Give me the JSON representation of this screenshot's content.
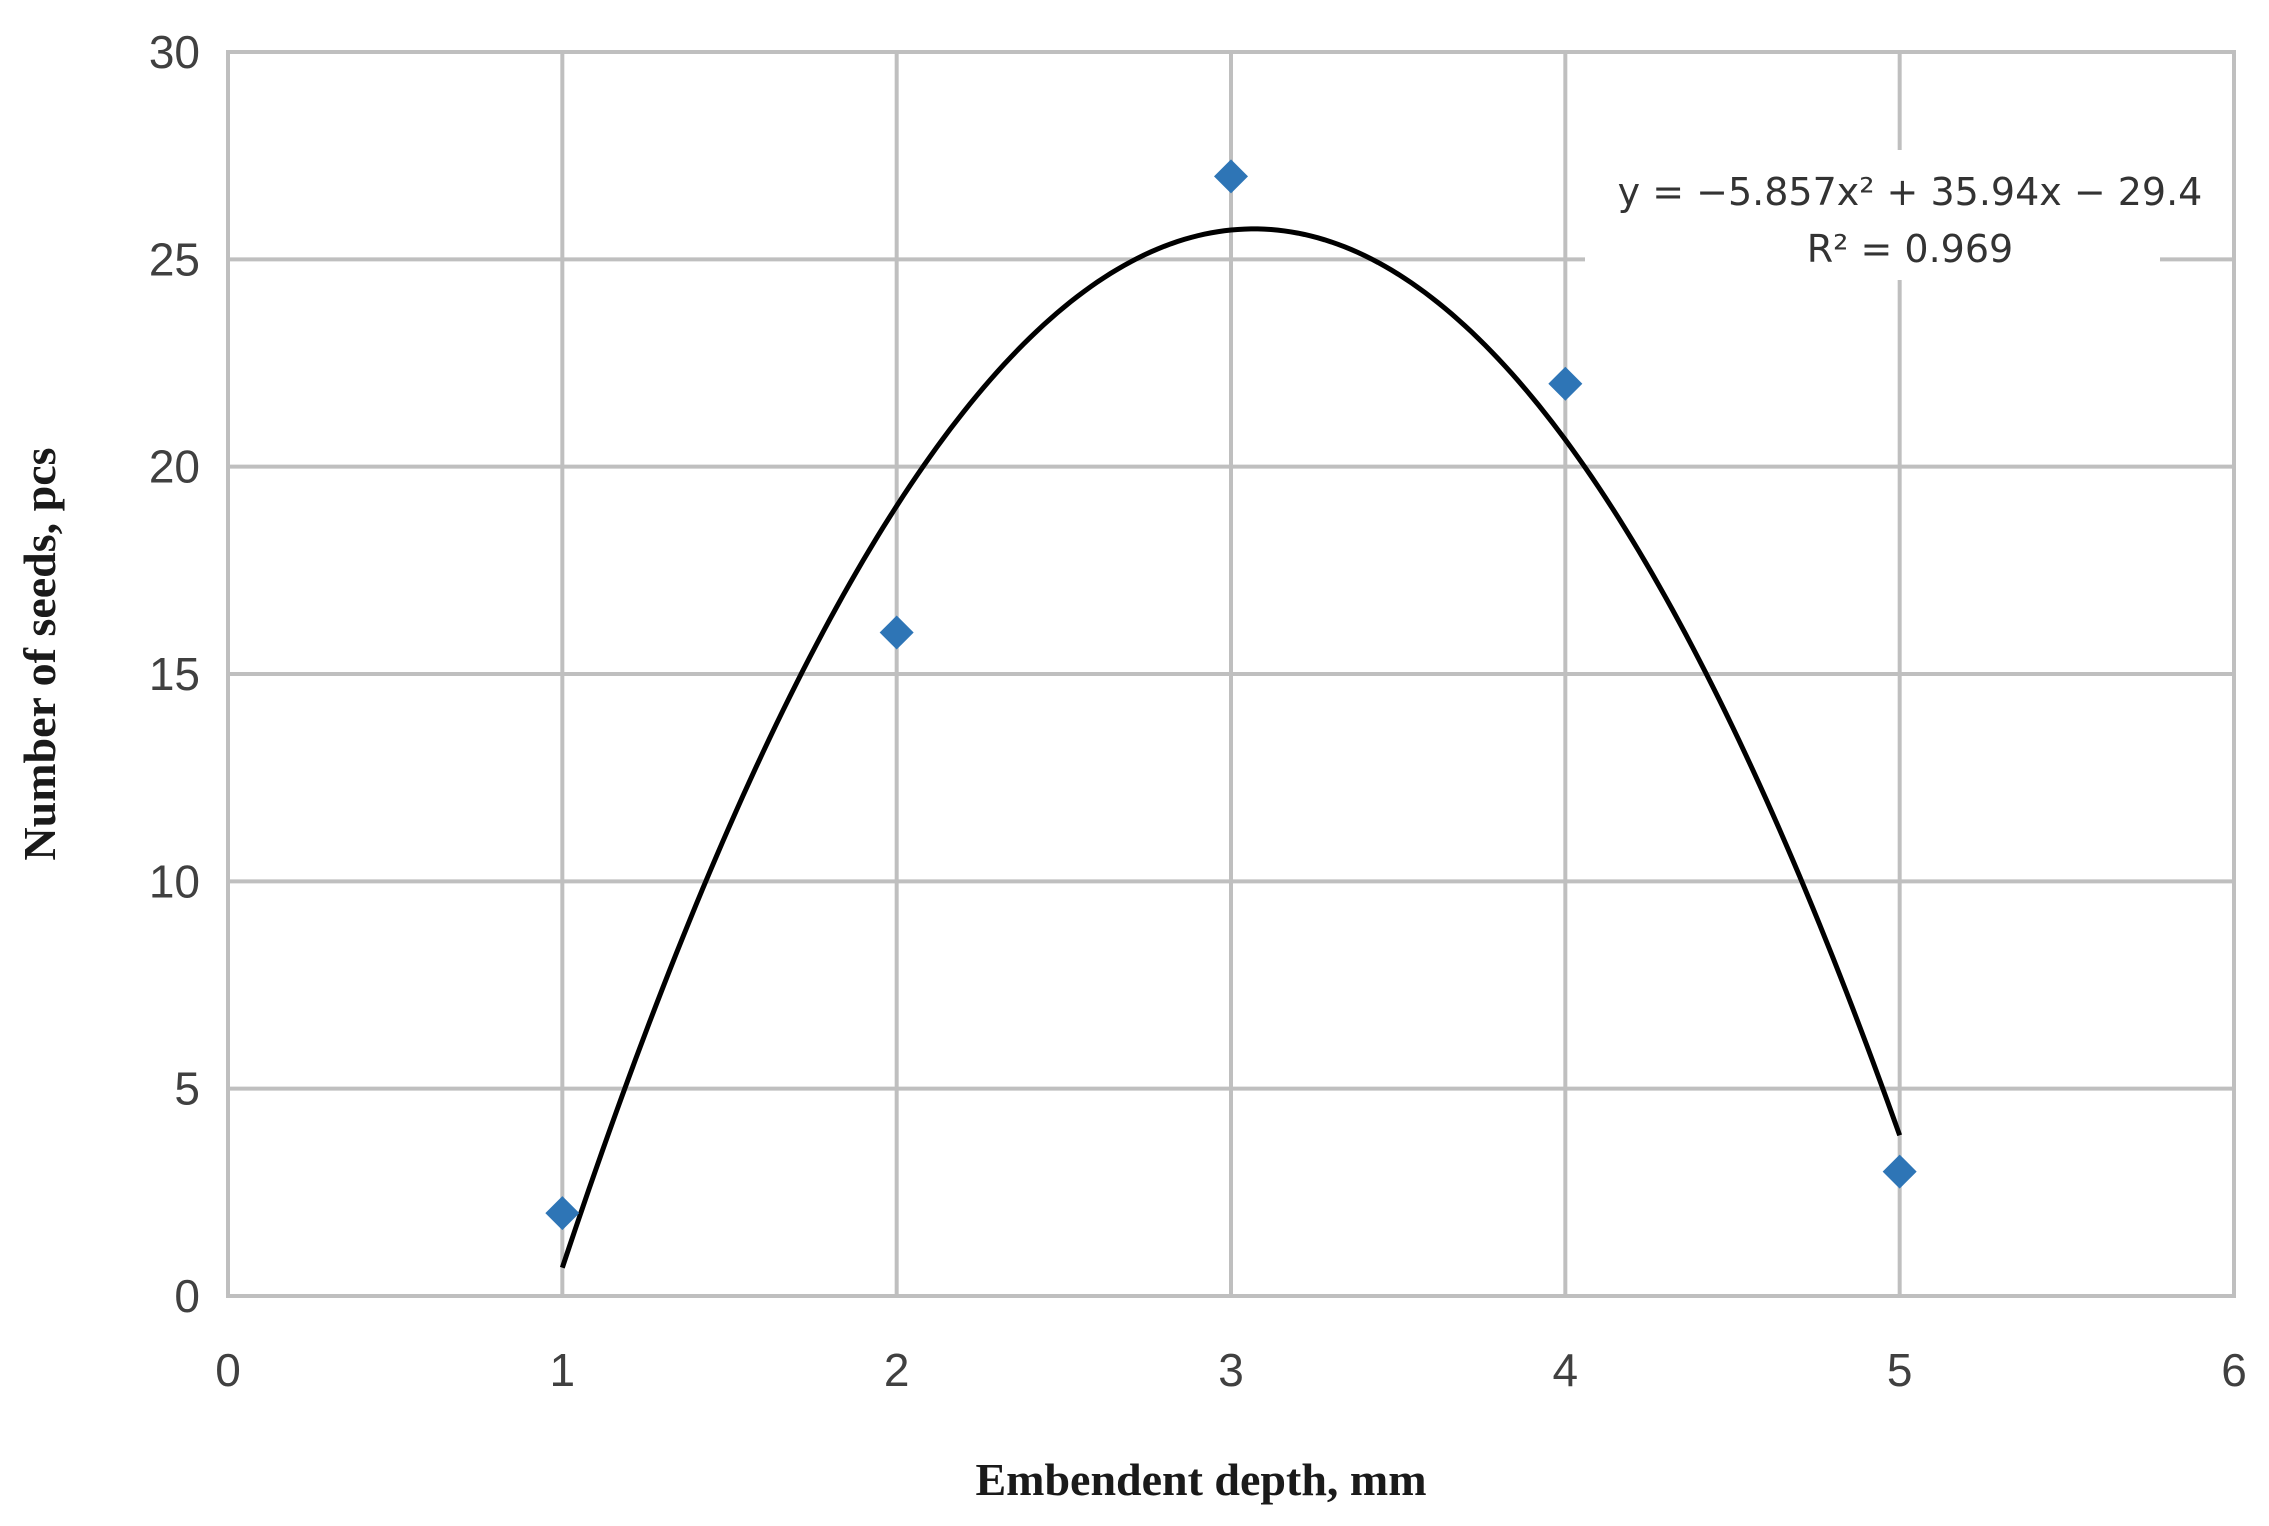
{
  "chart_data": {
    "type": "scatter",
    "title": "",
    "xlabel": "Embendent depth, mm",
    "ylabel": "Number of seeds, pcs",
    "xlim": [
      0,
      6
    ],
    "ylim": [
      0,
      30
    ],
    "xticks": [
      "0",
      "1",
      "2",
      "3",
      "4",
      "5",
      "6"
    ],
    "yticks": [
      "0",
      "5",
      "10",
      "15",
      "20",
      "25",
      "30"
    ],
    "grid": true,
    "legend": "none",
    "series": [
      {
        "x": [
          1,
          2,
          3,
          4,
          5
        ],
        "y": [
          2,
          16,
          27,
          22,
          3
        ],
        "color": "#2e75b6",
        "marker": "diamond"
      }
    ],
    "trendline": {
      "type": "polynomial",
      "order": 2,
      "coefficients": [
        -5.857,
        35.94,
        -29.4
      ],
      "x_range": [
        1,
        5
      ],
      "color": "#000000",
      "equation_text": "y = −5.857x² + 35.94x − 29.4",
      "r2_text": "R² = 0.969"
    }
  }
}
